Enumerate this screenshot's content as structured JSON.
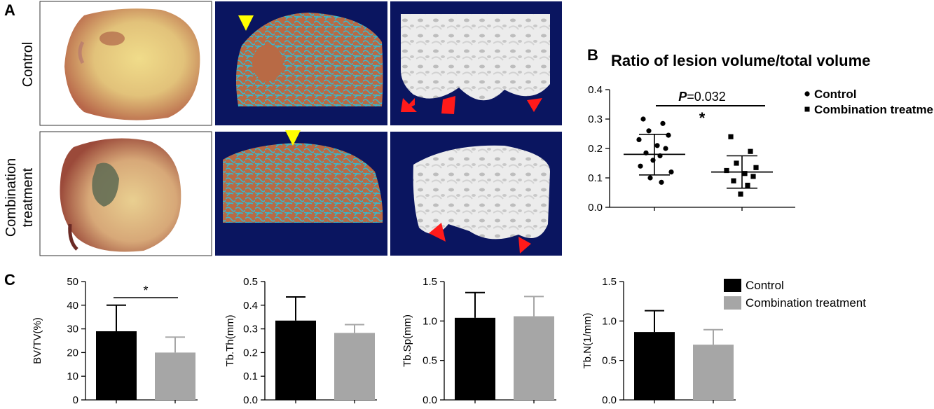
{
  "panels": {
    "a": "A",
    "b": "B",
    "c": "C"
  },
  "row_labels": {
    "control": "Control",
    "combination_line1": "Combination",
    "combination_line2": "treatment"
  },
  "colors": {
    "control": "#000000",
    "combination": "#a6a6a6",
    "ct_background": "#0a1560",
    "arrow_yellow": "#ffff00",
    "arrow_red": "#ff1a1a"
  },
  "chart_data": [
    {
      "id": "B",
      "type": "scatter",
      "title": "Ratio of lesion volume/total volume",
      "xlabel": "",
      "ylabel": "",
      "ylim": [
        0,
        0.4
      ],
      "yticks": [
        "0.0",
        "0.1",
        "0.2",
        "0.3",
        "0.4"
      ],
      "series": [
        {
          "name": "Control",
          "marker": "circle",
          "values": [
            0.3,
            0.285,
            0.26,
            0.245,
            0.23,
            0.21,
            0.2,
            0.185,
            0.175,
            0.16,
            0.14,
            0.12,
            0.1,
            0.085
          ],
          "mean": 0.18,
          "sd_low": 0.11,
          "sd_high": 0.248
        },
        {
          "name": "Combination treatment",
          "marker": "square",
          "values": [
            0.24,
            0.19,
            0.15,
            0.135,
            0.125,
            0.115,
            0.105,
            0.09,
            0.075,
            0.045
          ],
          "mean": 0.12,
          "sd_low": 0.065,
          "sd_high": 0.175
        }
      ],
      "annotation": {
        "p_label": "P",
        "p_value": "=0.032",
        "star": "*"
      },
      "legend": "right"
    },
    {
      "id": "C1",
      "type": "bar",
      "ylabel": "BV/TV(%)",
      "ylim": [
        0,
        50
      ],
      "yticks": [
        "0",
        "10",
        "20",
        "30",
        "40",
        "50"
      ],
      "series": [
        {
          "name": "Control",
          "value": 29,
          "error": 11
        },
        {
          "name": "Combination treatment",
          "value": 20,
          "error": 6.5
        }
      ],
      "significance": "*"
    },
    {
      "id": "C2",
      "type": "bar",
      "ylabel": "Tb.Th(mm)",
      "ylim": [
        0,
        0.5
      ],
      "yticks": [
        "0.0",
        "0.1",
        "0.2",
        "0.3",
        "0.4",
        "0.5"
      ],
      "series": [
        {
          "name": "Control",
          "value": 0.335,
          "error": 0.1
        },
        {
          "name": "Combination treatment",
          "value": 0.283,
          "error": 0.035
        }
      ]
    },
    {
      "id": "C3",
      "type": "bar",
      "ylabel": "Tb.Sp(mm)",
      "ylim": [
        0,
        1.5
      ],
      "yticks": [
        "0.0",
        "0.5",
        "1.0",
        "1.5"
      ],
      "series": [
        {
          "name": "Control",
          "value": 1.04,
          "error": 0.32
        },
        {
          "name": "Combination treatment",
          "value": 1.06,
          "error": 0.25
        }
      ]
    },
    {
      "id": "C4",
      "type": "bar",
      "ylabel": "Tb.N(1/mm)",
      "ylim": [
        0,
        1.5
      ],
      "yticks": [
        "0.0",
        "0.5",
        "1.0",
        "1.5"
      ],
      "series": [
        {
          "name": "Control",
          "value": 0.86,
          "error": 0.27
        },
        {
          "name": "Combination treatment",
          "value": 0.7,
          "error": 0.19
        }
      ]
    }
  ],
  "legend_c": [
    "Control",
    "Combination treatment"
  ]
}
